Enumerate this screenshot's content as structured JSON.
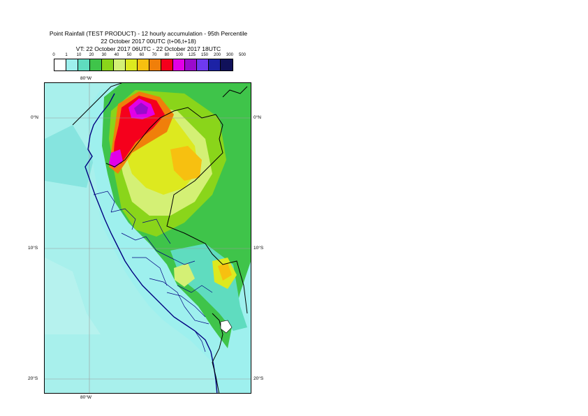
{
  "header": {
    "line1": "Point Rainfall (TEST PRODUCT) - 12 hourly accumulation - 95th Percentile",
    "line2": "22 October 2017 00UTC (t+06,t+18)",
    "line3": "VT: 22 October 2017 06UTC - 22 October 2017 18UTC"
  },
  "legend": {
    "thresholds": [
      "0",
      "1",
      "10",
      "20",
      "30",
      "40",
      "50",
      "60",
      "70",
      "80",
      "100",
      "125",
      "150",
      "200",
      "300",
      "500"
    ],
    "colors": [
      "#ffffff",
      "#9ef0ee",
      "#5fdcbf",
      "#3fc44a",
      "#8ad51a",
      "#d4f075",
      "#dde91f",
      "#f7c010",
      "#f07f0a",
      "#f5001c",
      "#e200e7",
      "#9a0bcd",
      "#6e3af0",
      "#1c22a5",
      "#10115a"
    ]
  },
  "map": {
    "lat_labels_left": [
      "0°N",
      "10°S",
      "20°S"
    ],
    "lat_labels_right": [
      "0°N",
      "10°S",
      "20°S"
    ],
    "lon_label_top": "80°W",
    "lon_label_bottom": "80°W",
    "colors": {
      "ocean_light": "#a8f0ec",
      "ocean_dark": "#7ee6dc",
      "coast": "#000080",
      "border": "#000000",
      "grid": "#9a9a9a"
    }
  }
}
